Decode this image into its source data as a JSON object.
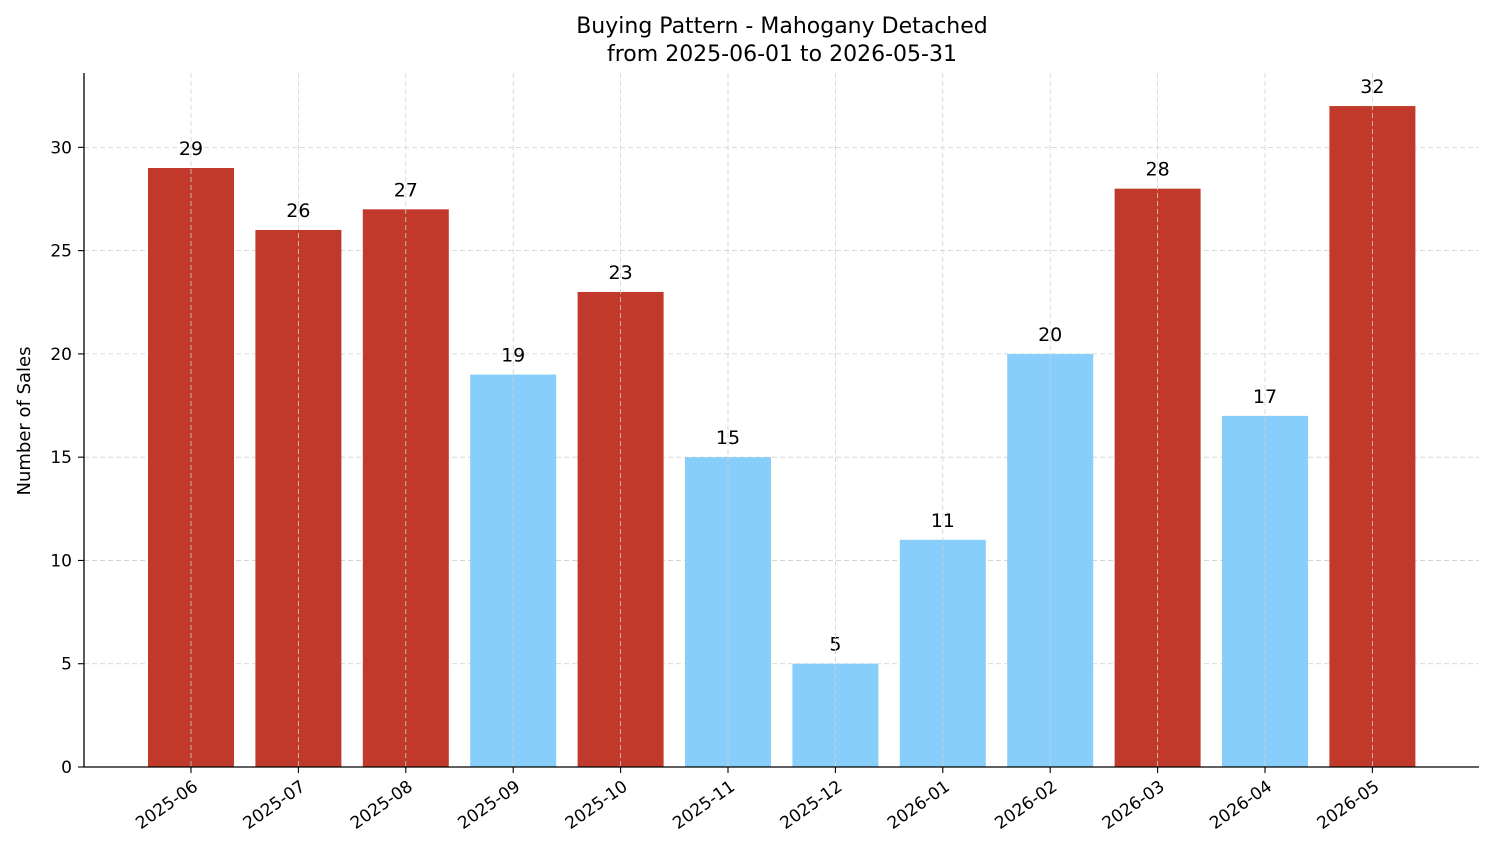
{
  "colors": {
    "high": "#c0392b",
    "low": "#87cefa"
  },
  "chart_data": {
    "type": "bar",
    "title": "Buying Pattern - Mahogany Detached",
    "subtitle": "from 2025-06-01 to 2026-05-31",
    "xlabel": "",
    "ylabel": "Number of Sales",
    "categories": [
      "2025-06",
      "2025-07",
      "2025-08",
      "2025-09",
      "2025-10",
      "2025-11",
      "2025-12",
      "2026-01",
      "2026-02",
      "2026-03",
      "2026-04",
      "2026-05"
    ],
    "values": [
      29,
      26,
      27,
      19,
      23,
      15,
      5,
      11,
      20,
      28,
      17,
      32
    ],
    "bar_colors": [
      "high",
      "high",
      "high",
      "low",
      "high",
      "low",
      "low",
      "low",
      "low",
      "high",
      "low",
      "high"
    ],
    "ylim": [
      0,
      33.6
    ],
    "yticks": [
      0,
      5,
      10,
      15,
      20,
      25,
      30
    ],
    "grid": true,
    "legend": "none"
  }
}
